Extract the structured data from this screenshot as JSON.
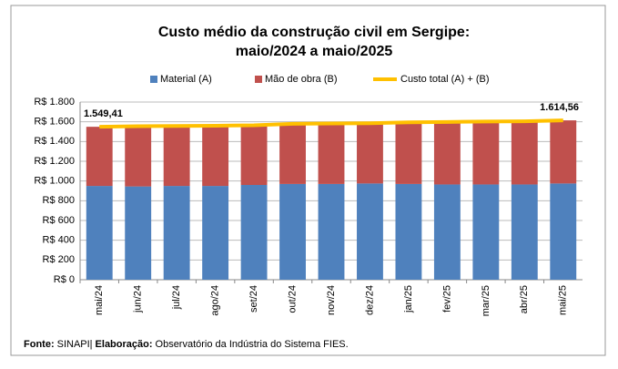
{
  "chart_data": {
    "type": "stacked_bar_line",
    "title": [
      "Custo médio da construção civil em Sergipe:",
      "maio/2024 a maio/2025"
    ],
    "categories": [
      "mai/24",
      "jun/24",
      "jul/24",
      "ago/24",
      "set/24",
      "out/24",
      "nov/24",
      "dez/24",
      "jan/25",
      "fev/25",
      "mar/25",
      "abr/25",
      "mai/25"
    ],
    "series": [
      {
        "name": "Material (A)",
        "color": "#4f81bd",
        "kind": "bar",
        "values": [
          950,
          945,
          950,
          950,
          960,
          970,
          970,
          975,
          970,
          965,
          965,
          965,
          975
        ]
      },
      {
        "name": "Mão de obra (B)",
        "color": "#c0504d",
        "kind": "bar",
        "values": [
          599.41,
          610,
          608,
          610,
          605,
          610,
          613,
          610,
          625,
          633,
          638,
          640,
          639.56
        ]
      },
      {
        "name": "Custo total (A) + (B)",
        "color": "#ffc000",
        "kind": "line",
        "values": [
          1549.41,
          1555,
          1558,
          1560,
          1565,
          1580,
          1583,
          1585,
          1595,
          1598,
          1603,
          1605,
          1614.56
        ],
        "value_labels": [
          "1.549,41",
          null,
          null,
          null,
          null,
          null,
          null,
          null,
          null,
          null,
          null,
          null,
          "1.614,56"
        ]
      }
    ],
    "ylim": [
      0,
      1800
    ],
    "yticks": [
      {
        "value": 0,
        "label": "R$ 0"
      },
      {
        "value": 200,
        "label": "R$ 200"
      },
      {
        "value": 400,
        "label": "R$ 400"
      },
      {
        "value": 600,
        "label": "R$ 600"
      },
      {
        "value": 800,
        "label": "R$ 800"
      },
      {
        "value": 1000,
        "label": "R$ 1.000"
      },
      {
        "value": 1200,
        "label": "R$ 1.200"
      },
      {
        "value": 1400,
        "label": "R$ 1.400"
      },
      {
        "value": 1600,
        "label": "R$ 1.600"
      },
      {
        "value": 1800,
        "label": "R$ 1.800"
      }
    ],
    "grid": true,
    "legend": "top",
    "footer": [
      {
        "label": "Fonte:",
        "text": "SINAPI|"
      },
      {
        "label": "Elaboração:",
        "text": "Observatório da Indústria do Sistema FIES."
      }
    ]
  }
}
